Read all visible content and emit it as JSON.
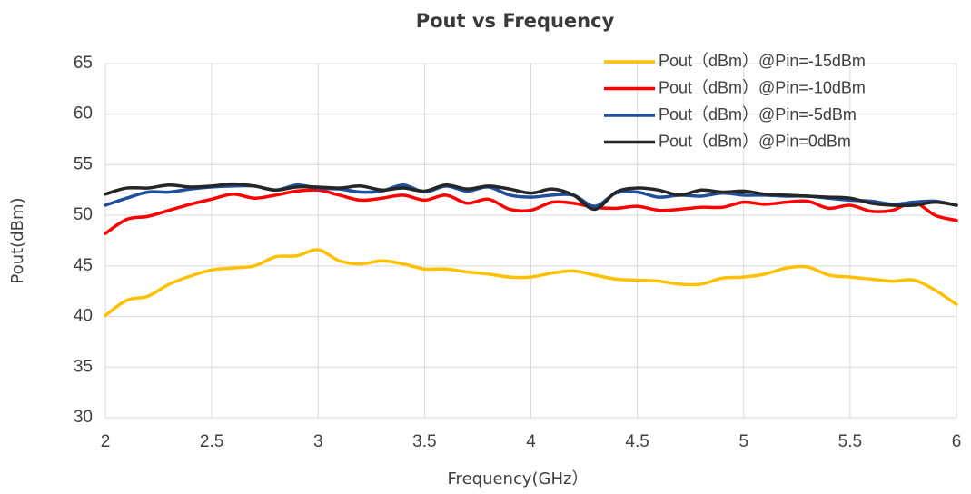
{
  "chart_data": {
    "type": "line",
    "title": "Pout vs Frequency",
    "x_label": "Frequency(GHz）",
    "y_label": "Pout(dBm)",
    "x": [
      2,
      2.1,
      2.2,
      2.3,
      2.4,
      2.5,
      2.6,
      2.7,
      2.8,
      2.9,
      3,
      3.1,
      3.2,
      3.3,
      3.4,
      3.5,
      3.6,
      3.7,
      3.8,
      3.9,
      4,
      4.1,
      4.2,
      4.3,
      4.4,
      4.5,
      4.6,
      4.7,
      4.8,
      4.9,
      5,
      5.1,
      5.2,
      5.3,
      5.4,
      5.5,
      5.6,
      5.7,
      5.8,
      5.9,
      6
    ],
    "series": [
      {
        "name": "Pout（dBm）@Pin=-15dBm",
        "color": "#ffc000",
        "values": [
          40.1,
          41.6,
          42.0,
          43.2,
          44.0,
          44.6,
          44.8,
          45.0,
          45.9,
          46.0,
          46.6,
          45.5,
          45.2,
          45.5,
          45.2,
          44.7,
          44.7,
          44.4,
          44.2,
          43.9,
          43.9,
          44.3,
          44.5,
          44.1,
          43.7,
          43.6,
          43.5,
          43.2,
          43.2,
          43.8,
          43.9,
          44.2,
          44.8,
          44.9,
          44.1,
          43.9,
          43.7,
          43.5,
          43.6,
          42.6,
          41.2
        ]
      },
      {
        "name": "Pout（dBm）@Pin=-10dBm",
        "color": "#ff0000",
        "values": [
          48.2,
          49.6,
          49.9,
          50.5,
          51.1,
          51.6,
          52.1,
          51.7,
          52.0,
          52.4,
          52.5,
          52.0,
          51.5,
          51.7,
          52.0,
          51.5,
          52.0,
          51.2,
          51.6,
          50.6,
          50.5,
          51.3,
          51.2,
          50.8,
          50.7,
          50.9,
          50.5,
          50.6,
          50.8,
          50.8,
          51.3,
          51.1,
          51.3,
          51.4,
          50.7,
          51.0,
          50.4,
          50.5,
          51.3,
          50.0,
          49.5
        ]
      },
      {
        "name": "Pout（dBm）@Pin=-5dBm",
        "color": "#1f4e9a",
        "values": [
          51.0,
          51.7,
          52.3,
          52.3,
          52.6,
          52.8,
          52.9,
          52.9,
          52.5,
          53.0,
          52.7,
          52.6,
          52.3,
          52.4,
          53.0,
          52.3,
          52.9,
          52.4,
          52.8,
          52.0,
          51.8,
          52.0,
          52.0,
          50.9,
          52.2,
          52.3,
          51.8,
          52.0,
          51.9,
          52.2,
          52.0,
          52.0,
          51.9,
          51.9,
          51.7,
          51.5,
          51.4,
          51.1,
          51.3,
          51.4,
          51.0
        ]
      },
      {
        "name": "Pout（dBm）@Pin=0dBm",
        "color": "#262626",
        "values": [
          52.1,
          52.7,
          52.7,
          53.0,
          52.8,
          52.9,
          53.1,
          52.9,
          52.5,
          52.8,
          52.8,
          52.7,
          52.9,
          52.5,
          52.7,
          52.4,
          53.0,
          52.6,
          52.9,
          52.6,
          52.2,
          52.6,
          52.0,
          50.6,
          52.3,
          52.7,
          52.5,
          52.0,
          52.5,
          52.3,
          52.4,
          52.1,
          52.0,
          51.9,
          51.8,
          51.7,
          51.2,
          51.0,
          51.0,
          51.3,
          51.0
        ]
      }
    ],
    "xlim": [
      2,
      6
    ],
    "xticks": [
      2,
      2.5,
      3,
      3.5,
      4,
      4.5,
      5,
      5.5,
      6
    ],
    "ylim": [
      30,
      65
    ],
    "yticks": [
      30,
      35,
      40,
      45,
      50,
      55,
      60,
      65
    ],
    "grid": true,
    "legend_position": "top-right"
  }
}
